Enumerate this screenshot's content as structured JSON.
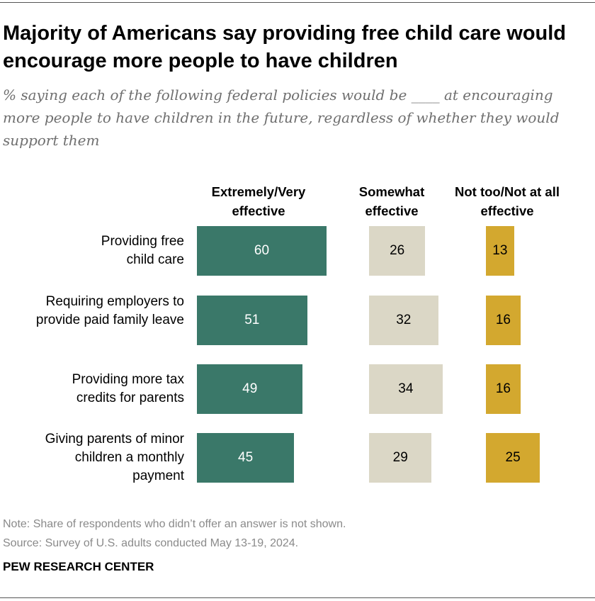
{
  "title": "Majority of Americans say providing free child care would encourage more people to have children",
  "subtitle": "% saying each of the following federal policies would be ____ at encouraging more people to have children in the future, regardless of whether they would support them",
  "note": "Note: Share of respondents who didn’t offer an answer is not shown.",
  "source": "Source: Survey of U.S. adults conducted May 13-19, 2024.",
  "brand": "PEW RESEARCH CENTER",
  "chart_data": {
    "type": "bar",
    "categories": [
      "Providing free child care",
      "Requiring employers to provide paid family leave",
      "Providing more tax credits for parents",
      "Giving parents of minor children a monthly payment"
    ],
    "series": [
      {
        "name": "Extremely/Very effective",
        "color": "#3a7869",
        "text_color": "#ffffff",
        "values": [
          60,
          51,
          49,
          45
        ]
      },
      {
        "name": "Somewhat effective",
        "color": "#dbd7c6",
        "text_color": "#000000",
        "values": [
          26,
          32,
          34,
          29
        ]
      },
      {
        "name": "Not too/Not at all effective",
        "color": "#d3a82f",
        "text_color": "#000000",
        "values": [
          13,
          16,
          16,
          25
        ]
      }
    ]
  }
}
